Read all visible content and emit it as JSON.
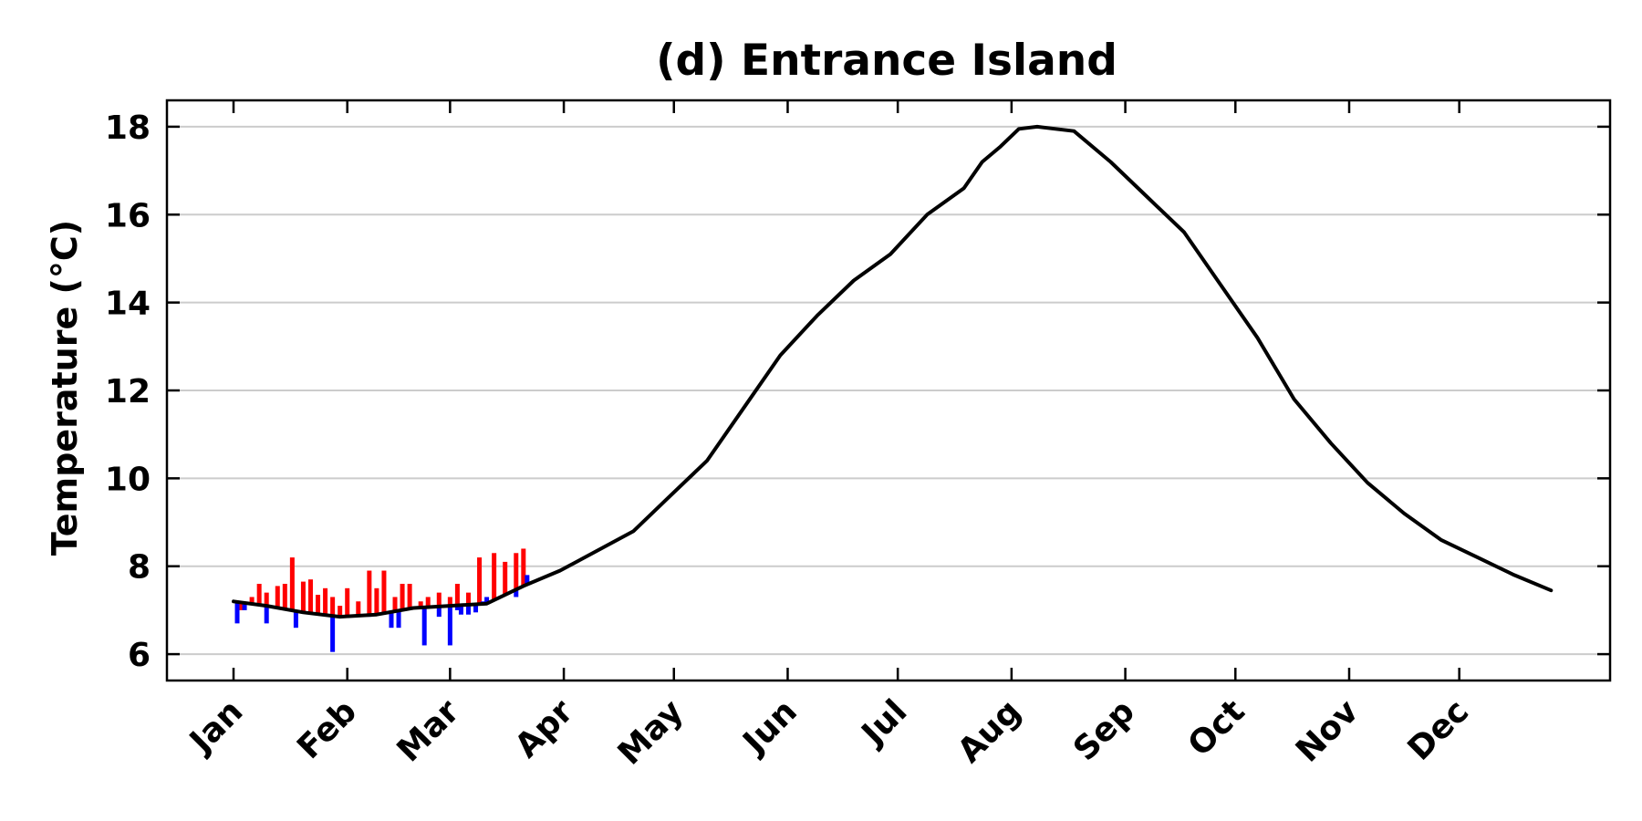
{
  "chart_data": {
    "type": "line",
    "title": "(d) Entrance Island",
    "ylabel": "Temperature (°C)",
    "xlabel": "",
    "ylim": [
      5.4,
      18.6
    ],
    "yticks": [
      6,
      8,
      10,
      12,
      14,
      16,
      18
    ],
    "grid": "horizontal",
    "x_categories": [
      "Jan",
      "Feb",
      "Mar",
      "Apr",
      "May",
      "Jun",
      "Jul",
      "Aug",
      "Sep",
      "Oct",
      "Nov",
      "Dec"
    ],
    "climatology_series": {
      "name": "",
      "color": "#000000",
      "x_day": [
        1,
        10,
        20,
        30,
        40,
        50,
        60,
        70,
        80,
        90,
        100,
        110,
        120,
        130,
        140,
        150,
        160,
        170,
        180,
        190,
        200,
        205,
        210,
        215,
        220,
        230,
        240,
        250,
        260,
        270,
        280,
        290,
        300,
        310,
        320,
        330,
        340,
        350,
        360
      ],
      "values": [
        7.2,
        7.1,
        6.95,
        6.85,
        6.9,
        7.05,
        7.1,
        7.15,
        7.55,
        7.9,
        8.35,
        8.8,
        9.6,
        10.4,
        11.6,
        12.8,
        13.7,
        14.5,
        15.1,
        16.0,
        16.6,
        17.2,
        17.55,
        17.95,
        18.0,
        17.9,
        17.2,
        16.4,
        15.6,
        14.4,
        13.2,
        11.8,
        10.8,
        9.9,
        9.2,
        8.6,
        8.2,
        7.8,
        7.45
      ]
    },
    "positive_anomaly": {
      "color": "#ff0000",
      "x_day": [
        3,
        6,
        8,
        10,
        13,
        15,
        17,
        20,
        22,
        24,
        26,
        28,
        30,
        32,
        35,
        38,
        40,
        42,
        45,
        47,
        49,
        52,
        54,
        57,
        60,
        62,
        65,
        68,
        72,
        75,
        78,
        80
      ],
      "values": [
        7.0,
        7.3,
        7.6,
        7.4,
        7.55,
        7.6,
        8.2,
        7.65,
        7.7,
        7.35,
        7.5,
        7.3,
        7.1,
        7.5,
        7.2,
        7.9,
        7.5,
        7.9,
        7.3,
        7.6,
        7.6,
        7.2,
        7.3,
        7.4,
        7.3,
        7.6,
        7.4,
        8.2,
        8.3,
        8.1,
        8.3,
        8.4
      ]
    },
    "negative_anomaly": {
      "color": "#0000ff",
      "x_day": [
        2,
        4,
        10,
        18,
        28,
        38,
        44,
        46,
        53,
        57,
        60,
        62,
        63,
        65,
        67,
        69,
        70,
        74,
        78,
        81
      ],
      "values": [
        6.7,
        7.0,
        6.7,
        6.6,
        6.05,
        6.85,
        6.6,
        6.6,
        6.2,
        6.85,
        6.2,
        7.0,
        6.9,
        6.9,
        6.95,
        7.2,
        7.3,
        7.3,
        7.3,
        7.8
      ]
    }
  }
}
